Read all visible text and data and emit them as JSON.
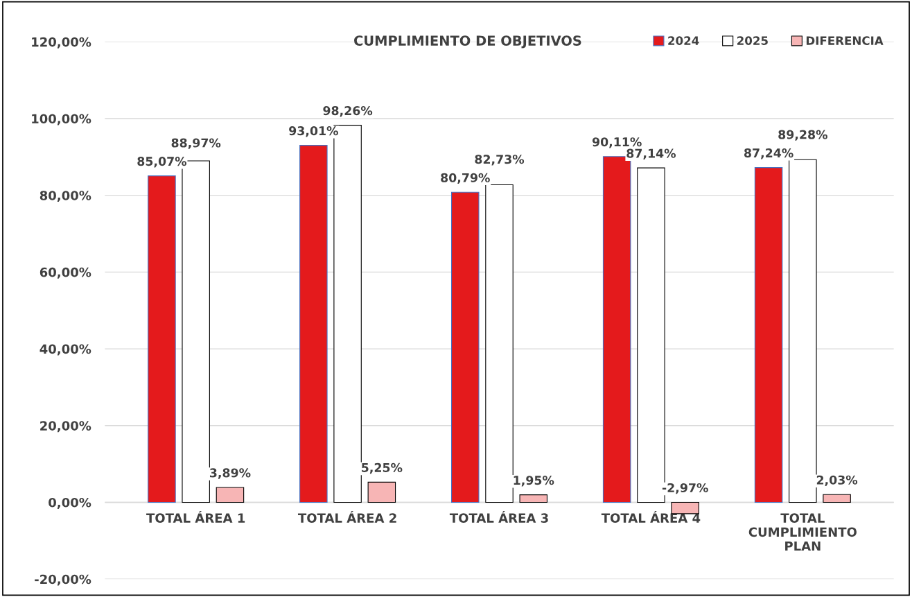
{
  "chart_data": {
    "type": "bar",
    "title": "CUMPLIMIENTO DE OBJETIVOS",
    "categories": [
      "TOTAL ÁREA 1",
      "TOTAL ÁREA 2",
      "TOTAL ÁREA 3",
      "TOTAL ÁREA 4",
      "TOTAL\nCUMPLIMIENTO\nPLAN"
    ],
    "series": [
      {
        "name": "2024",
        "color": "#e41a1c",
        "values": [
          85.07,
          93.01,
          80.79,
          90.11,
          87.24
        ],
        "value_labels": [
          "85,07%",
          "93,01%",
          "80,79%",
          "90,11%",
          "87,24%"
        ]
      },
      {
        "name": "2025",
        "color": "#ffffff",
        "values": [
          88.97,
          98.26,
          82.73,
          87.14,
          89.28
        ],
        "value_labels": [
          "88,97%",
          "98,26%",
          "82,73%",
          "87,14%",
          "89,28%"
        ]
      },
      {
        "name": "DIFERENCIA",
        "color": "#f7b5b5",
        "values": [
          3.89,
          5.25,
          1.95,
          -2.97,
          2.03
        ],
        "value_labels": [
          "3,89%",
          "5,25%",
          "1,95%",
          "-2,97%",
          "2,03%"
        ]
      }
    ],
    "ylim": [
      -20,
      120
    ],
    "yticks": [
      {
        "value": -20,
        "label": "-20,00%"
      },
      {
        "value": 0,
        "label": "0,00%"
      },
      {
        "value": 20,
        "label": "20,00%"
      },
      {
        "value": 40,
        "label": "40,00%"
      },
      {
        "value": 60,
        "label": "60,00%"
      },
      {
        "value": 80,
        "label": "80,00%"
      },
      {
        "value": 100,
        "label": "100,00%"
      },
      {
        "value": 120,
        "label": "120,00%"
      }
    ],
    "grid": "y",
    "legend": "top right"
  }
}
